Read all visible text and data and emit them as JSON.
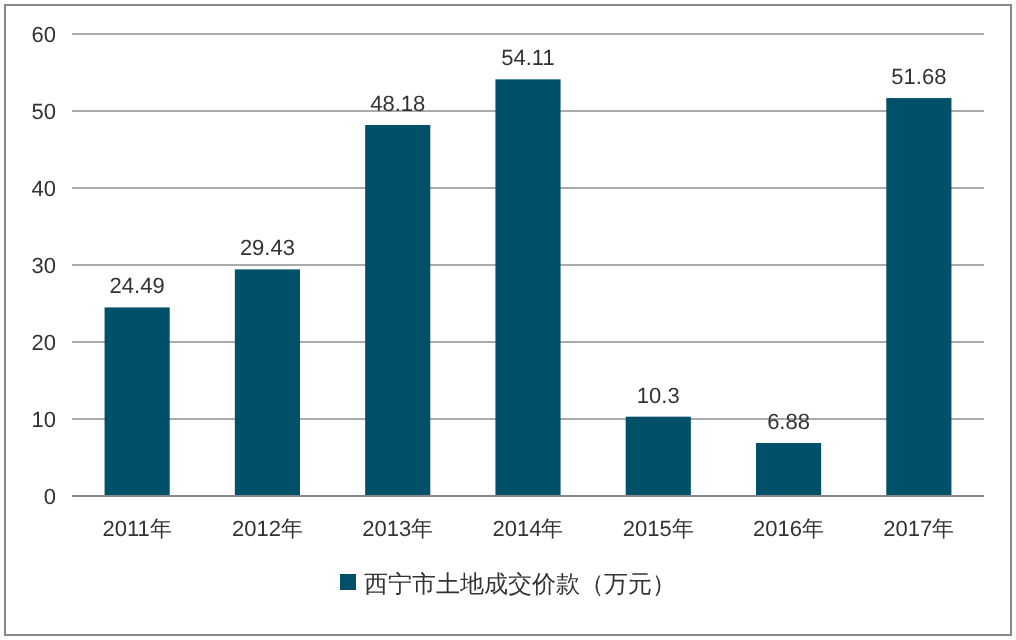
{
  "chart_data": {
    "type": "bar",
    "categories": [
      "2011年",
      "2012年",
      "2013年",
      "2014年",
      "2015年",
      "2016年",
      "2017年"
    ],
    "series": [
      {
        "name": "西宁市土地成交价款（万元）",
        "color": "#00506a",
        "values": [
          24.49,
          29.43,
          48.18,
          54.11,
          10.3,
          6.88,
          51.68
        ]
      }
    ],
    "ylim": [
      0,
      60
    ],
    "yticks": [
      0,
      10,
      20,
      30,
      40,
      50,
      60
    ],
    "grid": "y",
    "legend": "bottom",
    "data_labels": true
  }
}
